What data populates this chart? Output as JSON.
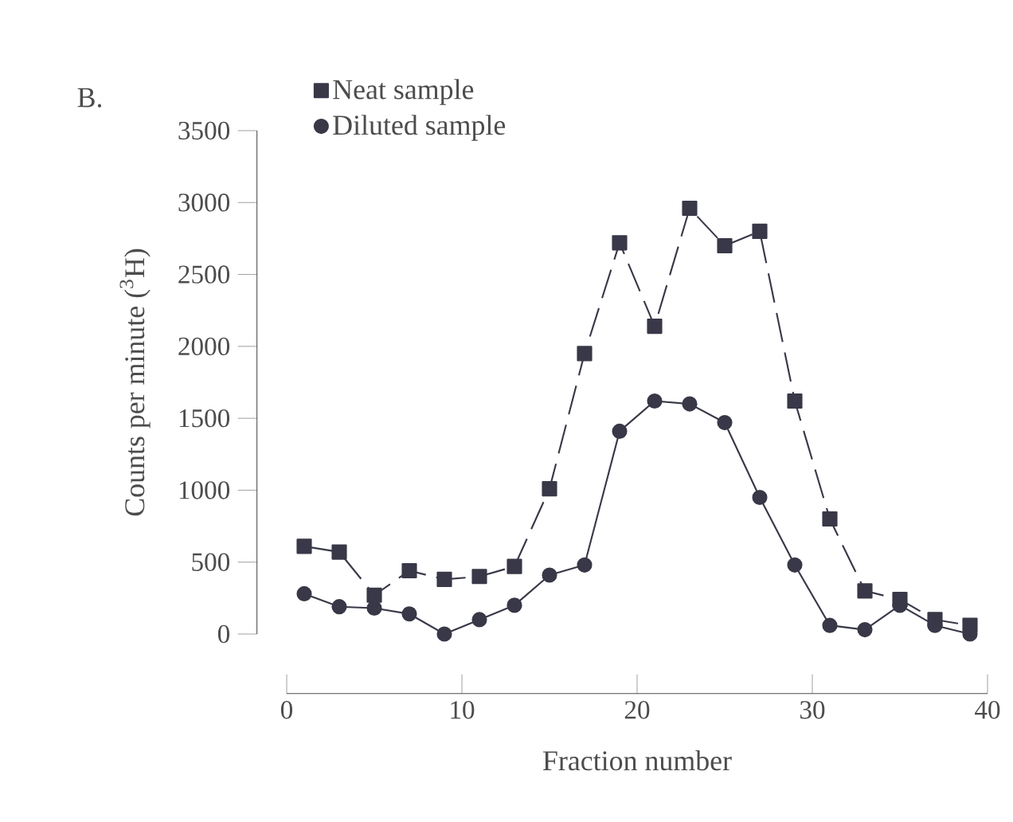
{
  "chart_data": {
    "type": "line",
    "title": "B.",
    "xlabel": "Fraction number",
    "ylabel": "Counts per minute ($^{3}$H)",
    "x": [
      1,
      3,
      5,
      7,
      9,
      11,
      13,
      15,
      17,
      19,
      21,
      23,
      25,
      27,
      29,
      31,
      33,
      35,
      37,
      39
    ],
    "series": [
      {
        "name": "Neat sample",
        "color": "#383848",
        "marker": "square",
        "line_style": "dashed",
        "values": [
          610,
          570,
          270,
          440,
          380,
          400,
          470,
          1010,
          1950,
          2720,
          2140,
          2960,
          2700,
          2800,
          1620,
          800,
          300,
          240,
          100,
          60
        ]
      },
      {
        "name": "Diluted sample",
        "color": "#383848",
        "marker": "circle",
        "line_style": "solid",
        "values": [
          280,
          190,
          180,
          140,
          0,
          100,
          200,
          410,
          480,
          1410,
          1620,
          1600,
          1470,
          950,
          480,
          60,
          30,
          200,
          60,
          0
        ]
      }
    ],
    "xlim": [
      0,
      40
    ],
    "xticks": [
      0,
      10,
      20,
      30,
      40
    ],
    "ylim": [
      0,
      3500
    ],
    "yticks": [
      0,
      500,
      1000,
      1500,
      2000,
      2500,
      3000,
      3500
    ],
    "legend": "top left",
    "grid": false
  }
}
